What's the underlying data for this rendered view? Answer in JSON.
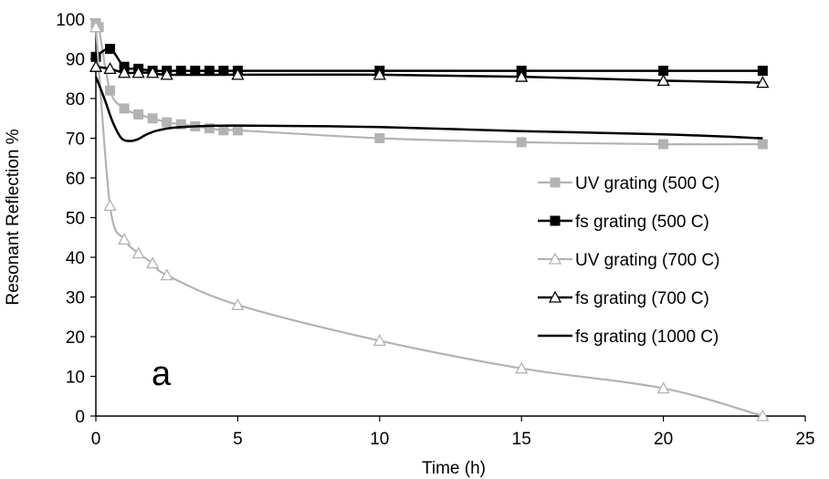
{
  "chart_data": {
    "type": "line",
    "xlabel": "Time (h)",
    "ylabel": "Resonant Reflection %",
    "annotation": "a",
    "xlim": [
      0,
      25
    ],
    "ylim": [
      0,
      100
    ],
    "xticks": [
      0,
      5,
      10,
      15,
      20,
      25
    ],
    "yticks": [
      0,
      10,
      20,
      30,
      40,
      50,
      60,
      70,
      80,
      90,
      100
    ],
    "grid": false,
    "legend_position": "right",
    "series": [
      {
        "name": "UV grating (500 C)",
        "color": "#b3b3b3",
        "marker": "square-filled",
        "x": [
          0,
          0.1,
          0.5,
          1,
          1.5,
          2,
          2.5,
          3,
          3.5,
          4,
          4.5,
          5,
          10,
          15,
          20,
          23.5
        ],
        "y": [
          99,
          98,
          82,
          77.5,
          76,
          75,
          74,
          73.5,
          73,
          72.5,
          72,
          72,
          70,
          69,
          68.5,
          68.5
        ]
      },
      {
        "name": "fs grating (500 C)",
        "color": "#000000",
        "marker": "square-filled",
        "x": [
          0,
          0.5,
          1,
          1.5,
          2,
          2.5,
          3,
          3.5,
          4,
          4.5,
          5,
          10,
          15,
          20,
          23.5
        ],
        "y": [
          90.5,
          92.5,
          88,
          87.5,
          87,
          87,
          87,
          87,
          87,
          87,
          87,
          87,
          87,
          87,
          87
        ]
      },
      {
        "name": "UV grating (700 C)",
        "color": "#b3b3b3",
        "marker": "triangle-open",
        "x": [
          0,
          0.5,
          1,
          1.5,
          2,
          2.5,
          5,
          10,
          15,
          20,
          23.5
        ],
        "y": [
          98,
          53,
          44.5,
          41,
          38.5,
          35.5,
          28,
          19,
          12,
          7,
          0
        ]
      },
      {
        "name": "fs grating (700 C)",
        "color": "#000000",
        "marker": "triangle-open",
        "x": [
          0,
          0.5,
          1,
          1.5,
          2,
          2.5,
          5,
          10,
          15,
          20,
          23.5
        ],
        "y": [
          88,
          87.5,
          86.5,
          86.5,
          86.5,
          86,
          86,
          86,
          85.5,
          84.5,
          84
        ]
      },
      {
        "name": "fs grating (1000 C)",
        "color": "#000000",
        "marker": "none",
        "x": [
          0,
          0.3,
          0.6,
          0.9,
          1.2,
          1.5,
          1.8,
          2.2,
          3,
          5,
          10,
          15,
          20,
          23.5
        ],
        "y": [
          85.5,
          80,
          74,
          70,
          69.3,
          69.8,
          71,
          72,
          72.8,
          73.2,
          72.8,
          71.8,
          71,
          70
        ]
      }
    ]
  }
}
